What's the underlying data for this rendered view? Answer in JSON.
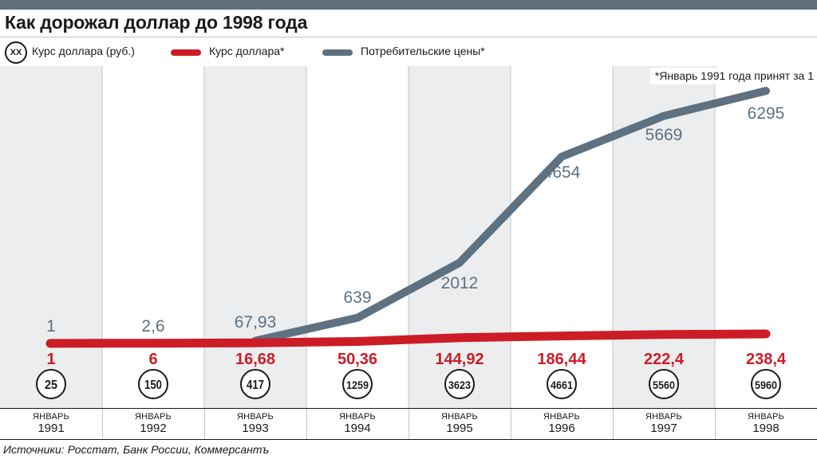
{
  "title": "Как дорожал доллар до 1998 года",
  "legend": {
    "circle_symbol": "XX",
    "circle_label": "Курс доллара (руб.)",
    "red_label": "Курс доллара*",
    "grey_label": "Потребительские цены*"
  },
  "note": "*Январь 1991 года принят за 1",
  "source": "Источники: Росстат, Банк России, Коммерсантъ",
  "colors": {
    "dollar_line": "#cc1d27",
    "prices_line": "#5e7180",
    "band_shade": "#ebedef",
    "top_bar": "#5f6f7b"
  },
  "chart_data": {
    "type": "line",
    "title": "Как дорожал доллар до 1998 года",
    "month_label": "ЯНВАРЬ",
    "categories": [
      "1991",
      "1992",
      "1993",
      "1994",
      "1995",
      "1996",
      "1997",
      "1998"
    ],
    "series": [
      {
        "name": "Потребительские цены*",
        "values": [
          1,
          2.6,
          67.93,
          639,
          2012,
          4654,
          5669,
          6295
        ],
        "labels": [
          "1",
          "2,6",
          "67,93",
          "639",
          "2012",
          "4654",
          "5669",
          "6295"
        ]
      },
      {
        "name": "Курс доллара*",
        "values": [
          1,
          6,
          16.68,
          50.36,
          144.92,
          186.44,
          222.4,
          238.4
        ],
        "labels": [
          "1",
          "6",
          "16,68",
          "50,36",
          "144,92",
          "186,44",
          "222,4",
          "238,4"
        ]
      }
    ],
    "dollar_rate_rub": {
      "name": "Курс доллара (руб.)",
      "values": [
        "25",
        "150",
        "417",
        "1259",
        "3623",
        "4661",
        "5560",
        "5960"
      ]
    },
    "ylim": [
      0,
      6500
    ],
    "legend_position": "top-left"
  }
}
